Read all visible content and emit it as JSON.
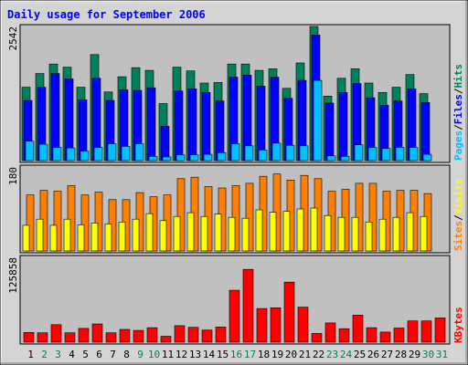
{
  "chart_data": {
    "type": "bar",
    "title": "Daily usage for September 2006",
    "categories": [
      "1",
      "2",
      "3",
      "4",
      "5",
      "6",
      "7",
      "8",
      "9",
      "10",
      "11",
      "12",
      "13",
      "14",
      "15",
      "16",
      "17",
      "18",
      "19",
      "20",
      "21",
      "22",
      "23",
      "24",
      "25",
      "26",
      "27",
      "28",
      "29",
      "30",
      "31"
    ],
    "weekend_days": [
      "2",
      "3",
      "9",
      "10",
      "16",
      "17",
      "23",
      "24",
      "30",
      "31"
    ],
    "colors": {
      "title": "#0000ff",
      "hits": "#00805c",
      "files": "#0000ff",
      "pages": "#00c0ff",
      "visits": "#ff8000",
      "sites": "#ffff00",
      "kbytes": "#ff0000",
      "weekday_label": "#000000",
      "weekend_label": "#00805c",
      "plot_bg": "#c0c0c0",
      "frame_bg": "#d4d4d4"
    },
    "panels": [
      {
        "name": "hits-files-pages",
        "ymax_label": "2542",
        "ylim": [
          0,
          2542
        ],
        "side_labels": [
          "Pages",
          "Files",
          "Hits"
        ],
        "series": [
          {
            "name": "Hits",
            "values": [
              1390,
              1650,
              1830,
              1770,
              1390,
              2010,
              1300,
              1590,
              1760,
              1710,
              1080,
              1770,
              1700,
              1470,
              1480,
              1830,
              1830,
              1710,
              1740,
              1370,
              1850,
              2542,
              1220,
              1560,
              1740,
              1470,
              1290,
              1390,
              1630,
              1270,
              0
            ]
          },
          {
            "name": "Files",
            "values": [
              1140,
              1390,
              1650,
              1550,
              1150,
              1560,
              1140,
              1340,
              1330,
              1380,
              650,
              1320,
              1360,
              1290,
              1130,
              1580,
              1620,
              1410,
              1580,
              1180,
              1520,
              2380,
              1090,
              1290,
              1460,
              1190,
              1050,
              1130,
              1360,
              1100,
              0
            ]
          },
          {
            "name": "Pages",
            "values": [
              370,
              310,
              250,
              240,
              180,
              250,
              320,
              270,
              320,
              80,
              70,
              110,
              110,
              120,
              150,
              320,
              280,
              200,
              330,
              290,
              280,
              1520,
              90,
              80,
              300,
              250,
              230,
              250,
              250,
              120,
              0
            ]
          }
        ]
      },
      {
        "name": "visits-sites",
        "ymax_label": "180",
        "ylim": [
          0,
          180
        ],
        "side_labels": [
          "Sites",
          "Visits"
        ],
        "series": [
          {
            "name": "Visits",
            "values": [
              120,
              130,
              128,
              140,
              120,
              126,
              110,
              110,
              125,
              116,
              120,
              155,
              158,
              138,
              135,
              140,
              145,
              160,
              165,
              152,
              162,
              155,
              128,
              132,
              145,
              145,
              128,
              130,
              130,
              123,
              0
            ]
          },
          {
            "name": "Sites",
            "values": [
              55,
              68,
              55,
              68,
              56,
              60,
              58,
              62,
              68,
              80,
              65,
              74,
              82,
              74,
              79,
              72,
              70,
              88,
              83,
              85,
              90,
              92,
              76,
              72,
              72,
              62,
              68,
              72,
              82,
              74,
              0
            ]
          }
        ]
      },
      {
        "name": "kbytes",
        "ymax_label": "125858",
        "ylim": [
          0,
          125858
        ],
        "side_labels": [
          "KBytes"
        ],
        "series": [
          {
            "name": "KBytes",
            "values": [
              14500,
              14000,
              26000,
              14000,
              20500,
              27000,
              14000,
              19000,
              17500,
              21500,
              8800,
              24500,
              22000,
              18000,
              22500,
              77000,
              108000,
              50000,
              51000,
              89000,
              52000,
              13000,
              28500,
              20000,
              40000,
              21500,
              15000,
              21000,
              31500,
              31500,
              36000
            ]
          }
        ]
      }
    ]
  }
}
